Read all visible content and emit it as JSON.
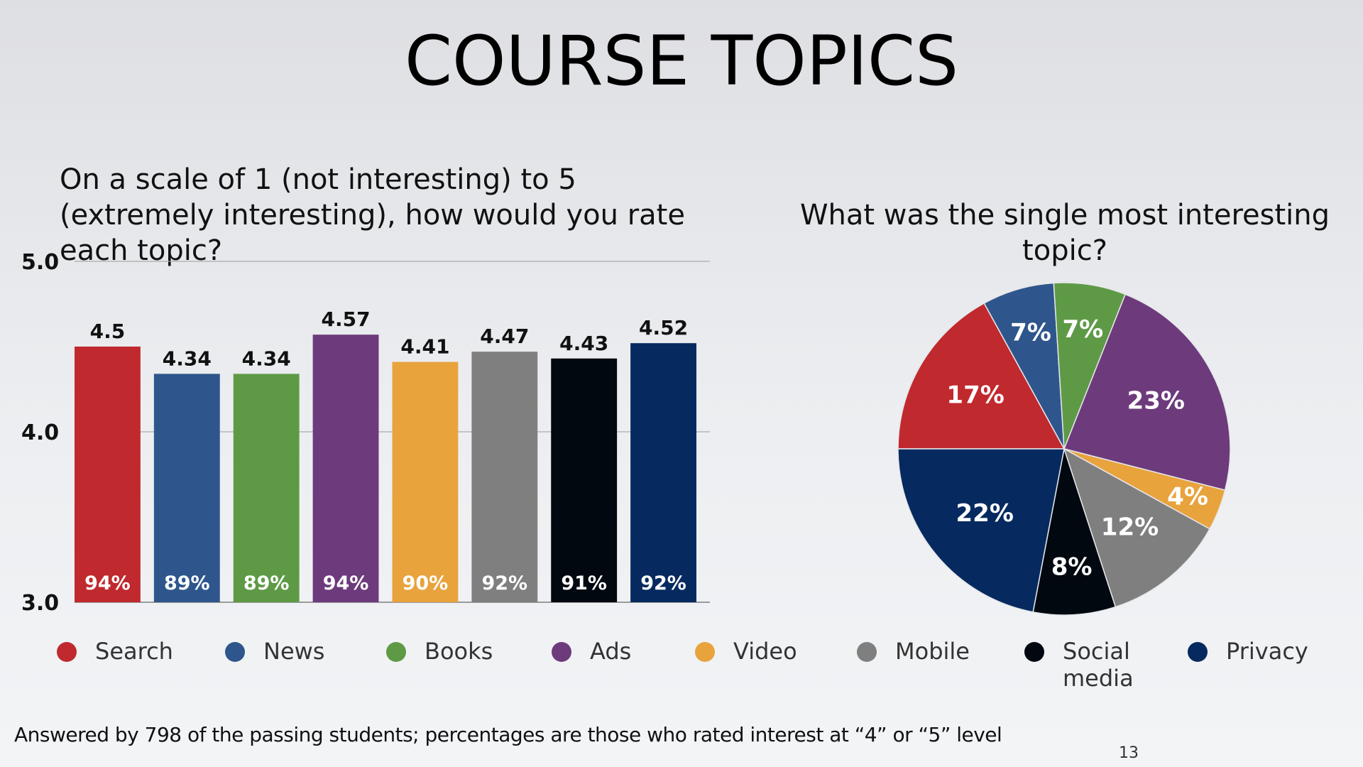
{
  "slide": {
    "title": "COURSE TOPICS",
    "footnote": "Answered by 798 of the passing students; percentages are those who rated interest at “4” or “5” level",
    "page_number": "13"
  },
  "legend": [
    {
      "label": "Search",
      "color": "#c0292e"
    },
    {
      "label": "News",
      "color": "#2e568c"
    },
    {
      "label": "Books",
      "color": "#5e9a46"
    },
    {
      "label": "Ads",
      "color": "#6d3a7c"
    },
    {
      "label": "Video",
      "color": "#e8a33d"
    },
    {
      "label": "Mobile",
      "color": "#7f7f7f"
    },
    {
      "label": "Social media",
      "color": "#020810"
    },
    {
      "label": "Privacy",
      "color": "#062a5f"
    }
  ],
  "chart_data": [
    {
      "type": "bar",
      "title": "On a scale of 1 (not interesting) to 5 (extremely interesting), how would you rate each topic?",
      "categories": [
        "Search",
        "News",
        "Books",
        "Ads",
        "Video",
        "Mobile",
        "Social media",
        "Privacy"
      ],
      "values": [
        4.5,
        4.34,
        4.34,
        4.57,
        4.41,
        4.47,
        4.43,
        4.52
      ],
      "value_labels": [
        "4.5",
        "4.34",
        "4.34",
        "4.57",
        "4.41",
        "4.47",
        "4.43",
        "4.52"
      ],
      "percent_labels": [
        "94%",
        "89%",
        "89%",
        "94%",
        "90%",
        "92%",
        "91%",
        "92%"
      ],
      "colors": [
        "#c0292e",
        "#2e568c",
        "#5e9a46",
        "#6d3a7c",
        "#e8a33d",
        "#7f7f7f",
        "#020810",
        "#062a5f"
      ],
      "ylim": [
        3.0,
        5.0
      ],
      "yticks": [
        "3.0",
        "4.0",
        "5.0"
      ],
      "grid": true
    },
    {
      "type": "pie",
      "title": "What was the single most interesting topic?",
      "slices": [
        {
          "label": "Search",
          "value": 17,
          "text": "17%",
          "color": "#c0292e"
        },
        {
          "label": "News",
          "value": 7,
          "text": "7%",
          "color": "#2e568c"
        },
        {
          "label": "Books",
          "value": 7,
          "text": "7%",
          "color": "#5e9a46"
        },
        {
          "label": "Ads",
          "value": 23,
          "text": "23%",
          "color": "#6d3a7c"
        },
        {
          "label": "Video",
          "value": 4,
          "text": "4%",
          "color": "#e8a33d"
        },
        {
          "label": "Mobile",
          "value": 12,
          "text": "12%",
          "color": "#7f7f7f"
        },
        {
          "label": "Social media",
          "value": 8,
          "text": "8%",
          "color": "#020810"
        },
        {
          "label": "Privacy",
          "value": 22,
          "text": "22%",
          "color": "#062a5f"
        }
      ]
    }
  ]
}
